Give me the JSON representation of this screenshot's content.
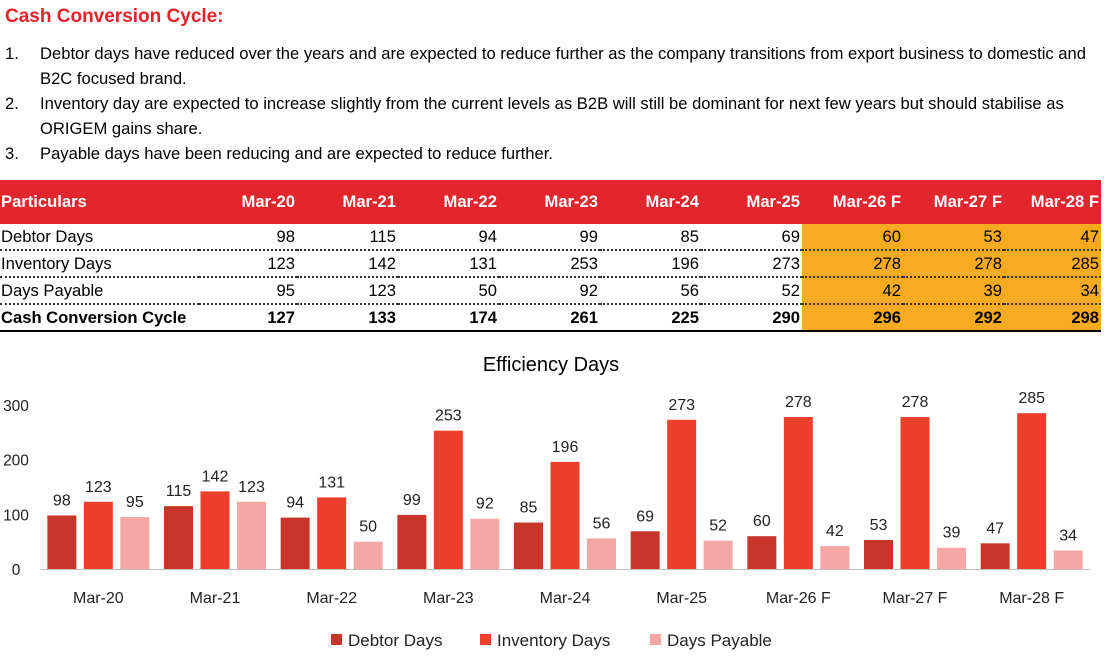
{
  "heading": "Cash Conversion Cycle:",
  "points": [
    {
      "num": "1.",
      "text": "Debtor days have reduced over the years and are expected to reduce further as the company transitions from export business to domestic and B2C focused brand."
    },
    {
      "num": "2.",
      "text": "Inventory day are expected to increase slightly from the current levels as B2B will still be dominant for next few years but should stabilise as ORIGEM gains share."
    },
    {
      "num": "3.",
      "text": "Payable days have been reducing and are expected to reduce further."
    }
  ],
  "table": {
    "headers": [
      "Particulars",
      "Mar-20",
      "Mar-21",
      "Mar-22",
      "Mar-23",
      "Mar-24",
      "Mar-25",
      "Mar-26 F",
      "Mar-27 F",
      "Mar-28 F"
    ],
    "rows": [
      [
        "Debtor Days",
        "98",
        "115",
        "94",
        "99",
        "85",
        "69",
        "60",
        "53",
        "47"
      ],
      [
        "Inventory Days",
        "123",
        "142",
        "131",
        "253",
        "196",
        "273",
        "278",
        "278",
        "285"
      ],
      [
        "Days Payable",
        "95",
        "123",
        "50",
        "92",
        "56",
        "52",
        "42",
        "39",
        "34"
      ],
      [
        "Cash Conversion Cycle",
        "127",
        "133",
        "174",
        "261",
        "225",
        "290",
        "296",
        "292",
        "298"
      ]
    ]
  },
  "colors": {
    "header_red": "#e3262d",
    "forecast_orange": "#f8aa21",
    "debtor": "#c8352a",
    "inventory": "#ee3e2c",
    "payable": "#f5a7a5"
  },
  "chart_data": {
    "type": "bar",
    "title": "Efficiency Days",
    "categories": [
      "Mar-20",
      "Mar-21",
      "Mar-22",
      "Mar-23",
      "Mar-24",
      "Mar-25",
      "Mar-26 F",
      "Mar-27 F",
      "Mar-28 F"
    ],
    "series": [
      {
        "name": "Debtor Days",
        "values": [
          98,
          115,
          94,
          99,
          85,
          69,
          60,
          53,
          47
        ],
        "color": "#c8352a"
      },
      {
        "name": "Inventory Days",
        "values": [
          123,
          142,
          131,
          253,
          196,
          273,
          278,
          278,
          285
        ],
        "color": "#ee3e2c"
      },
      {
        "name": "Days Payable",
        "values": [
          95,
          123,
          50,
          92,
          56,
          52,
          42,
          39,
          34
        ],
        "color": "#f5a7a5"
      }
    ],
    "yticks": [
      "0",
      "100",
      "200",
      "300"
    ],
    "ylim": [
      0,
      300
    ],
    "legend": "bottom",
    "grid": false
  }
}
